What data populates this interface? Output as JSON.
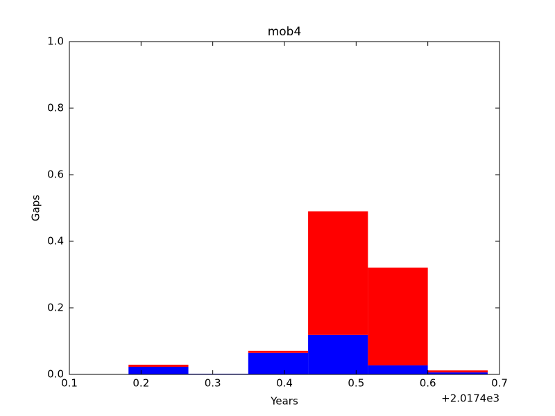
{
  "chart_data": {
    "type": "histogram",
    "title": "mob4",
    "xlabel": "Years",
    "ylabel": "Gaps",
    "x_offset_label": "+2.0174e3",
    "bins": [
      0.1825,
      0.266,
      0.3495,
      0.433,
      0.5165,
      0.6,
      0.6835
    ],
    "series": [
      {
        "color": "#0000ff",
        "values": [
          0.023,
          0.002,
          0.065,
          0.119,
          0.027,
          0.006
        ]
      },
      {
        "color": "#ff0000",
        "values": [
          0.006,
          0,
          0.006,
          0.371,
          0.294,
          0.006
        ]
      }
    ],
    "stacked": true,
    "xlim": [
      0.1,
      0.7
    ],
    "xticks": [
      0.1,
      0.2,
      0.3,
      0.4,
      0.5,
      0.6,
      0.7
    ],
    "ylim": [
      0,
      1
    ],
    "yticks": [
      {
        "value": 0,
        "label": "0.0"
      },
      0.2,
      0.4,
      0.6,
      0.8,
      {
        "value": 1,
        "label": "1.0"
      }
    ],
    "grid": false
  }
}
